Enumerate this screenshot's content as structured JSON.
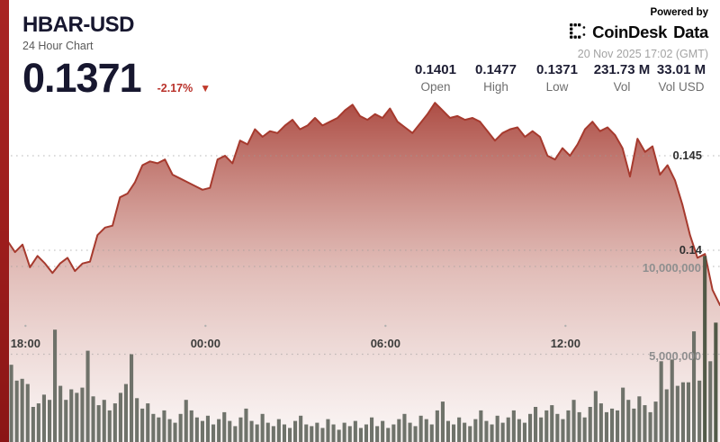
{
  "header": {
    "symbol": "HBAR-USD",
    "subtitle": "24 Hour Chart",
    "price": "0.1371",
    "change": "-2.17%",
    "change_direction": "down",
    "down_arrow": "▼"
  },
  "powered_by": {
    "label": "Powered by",
    "brand": "CoinDesk",
    "brand_suffix": "Data",
    "timestamp": "20 Nov 2025 17:02 (GMT)"
  },
  "stats": [
    {
      "value": "0.1401",
      "label": "Open"
    },
    {
      "value": "0.1477",
      "label": "High"
    },
    {
      "value": "0.1371",
      "label": "Low"
    },
    {
      "value": "231.73 M",
      "label": "Vol"
    },
    {
      "value": "33.01 M",
      "label": "Vol USD"
    }
  ],
  "colors": {
    "accent_line": "#a63a2e",
    "area_top": "rgba(158,44,34,0.85)",
    "area_mid": "rgba(181,92,80,0.40)",
    "area_bottom": "rgba(190,120,110,0.06)",
    "left_strip": "#a82423",
    "volume_bar": "#676c63",
    "volume_bar_dark": "#49523f",
    "grid_dot": "#9c9c9c",
    "tick_dot": "#b0b0b0",
    "price_text": "#17172f",
    "change_red": "#b9312a",
    "axis_price_label": "#2f2f2f",
    "axis_volume_label": "#8f8f8f",
    "axis_time_label": "#3c3c3c",
    "timestamp_gray": "#a3a3a3"
  },
  "chart_data": {
    "type": "area",
    "title": "HBAR-USD 24 Hour Chart",
    "x_range_hours": 24,
    "grid": "dotted",
    "legend": "none",
    "series": [
      {
        "name": "HBAR-USD price",
        "type": "area",
        "unit": "USD",
        "interval_minutes": 15,
        "values": [
          0.1402,
          0.1405,
          0.1399,
          0.1403,
          0.1391,
          0.1397,
          0.1393,
          0.1388,
          0.1393,
          0.1396,
          0.1389,
          0.1393,
          0.1394,
          0.1408,
          0.1412,
          0.1413,
          0.1428,
          0.143,
          0.1436,
          0.1445,
          0.1447,
          0.1446,
          0.1448,
          0.144,
          0.1438,
          0.1436,
          0.1434,
          0.1432,
          0.1433,
          0.1448,
          0.145,
          0.1446,
          0.1458,
          0.1456,
          0.1464,
          0.146,
          0.1463,
          0.1462,
          0.1466,
          0.1469,
          0.1464,
          0.1466,
          0.147,
          0.1466,
          0.1468,
          0.147,
          0.1474,
          0.1477,
          0.1471,
          0.1469,
          0.1472,
          0.147,
          0.1475,
          0.1468,
          0.1465,
          0.1462,
          0.1467,
          0.1472,
          0.1478,
          0.1474,
          0.147,
          0.1471,
          0.1469,
          0.147,
          0.1468,
          0.1463,
          0.1458,
          0.1462,
          0.1464,
          0.1465,
          0.146,
          0.1463,
          0.146,
          0.145,
          0.1448,
          0.1454,
          0.145,
          0.1456,
          0.1464,
          0.1468,
          0.1463,
          0.1465,
          0.1461,
          0.1454,
          0.1439,
          0.1459,
          0.1452,
          0.1455,
          0.144,
          0.1445,
          0.1437,
          0.1424,
          0.1408,
          0.1396,
          0.1398,
          0.1379,
          0.1371
        ]
      },
      {
        "name": "Volume",
        "type": "bar",
        "unit": "millions",
        "values": [
          4.4,
          3.5,
          3.6,
          3.3,
          2.0,
          2.2,
          2.7,
          2.4,
          6.4,
          3.2,
          2.4,
          3.0,
          2.8,
          3.1,
          5.2,
          2.6,
          2.1,
          2.4,
          1.8,
          2.2,
          2.8,
          3.3,
          5.0,
          2.5,
          1.9,
          2.2,
          1.6,
          1.4,
          1.8,
          1.3,
          1.1,
          1.6,
          2.4,
          1.8,
          1.4,
          1.2,
          1.5,
          1.0,
          1.3,
          1.7,
          1.2,
          0.9,
          1.4,
          1.9,
          1.2,
          1.0,
          1.6,
          1.1,
          0.9,
          1.3,
          1.0,
          0.8,
          1.2,
          1.5,
          1.0,
          0.9,
          1.1,
          0.8,
          1.3,
          1.0,
          0.7,
          1.1,
          0.9,
          1.2,
          0.8,
          1.0,
          1.4,
          0.9,
          1.2,
          0.8,
          1.0,
          1.3,
          1.6,
          1.1,
          0.9,
          1.5,
          1.3,
          1.0,
          1.8,
          2.3,
          1.2,
          1.0,
          1.4,
          1.1,
          0.9,
          1.3,
          1.8,
          1.2,
          1.0,
          1.5,
          1.1,
          1.4,
          1.8,
          1.3,
          1.1,
          1.6,
          2.0,
          1.4,
          1.8,
          2.1,
          1.6,
          1.3,
          1.8,
          2.4,
          1.7,
          1.4,
          2.0,
          2.9,
          2.2,
          1.7,
          1.9,
          1.8,
          3.1,
          2.4,
          1.9,
          2.6,
          2.1,
          1.7,
          2.3,
          4.6,
          3.0,
          4.7,
          3.2,
          3.4,
          3.4,
          6.3,
          3.5,
          10.6,
          4.6,
          6.8
        ],
        "dark_bar_indices": [
          127,
          129
        ]
      }
    ],
    "y_axis_price": {
      "side": "right",
      "ticks": [
        {
          "label": "0.145",
          "value": 0.145
        },
        {
          "label": "0.14",
          "value": 0.14
        }
      ]
    },
    "y_axis_volume": {
      "side": "right",
      "ticks": [
        {
          "label": "10,000,000",
          "value": 10
        },
        {
          "label": "5,000,000",
          "value": 5
        }
      ]
    },
    "x_axis": {
      "ticks": [
        {
          "label": "18:00",
          "hours_from_start": 1
        },
        {
          "label": "00:00",
          "hours_from_start": 7
        },
        {
          "label": "06:00",
          "hours_from_start": 13
        },
        {
          "label": "12:00",
          "hours_from_start": 19
        }
      ]
    }
  }
}
